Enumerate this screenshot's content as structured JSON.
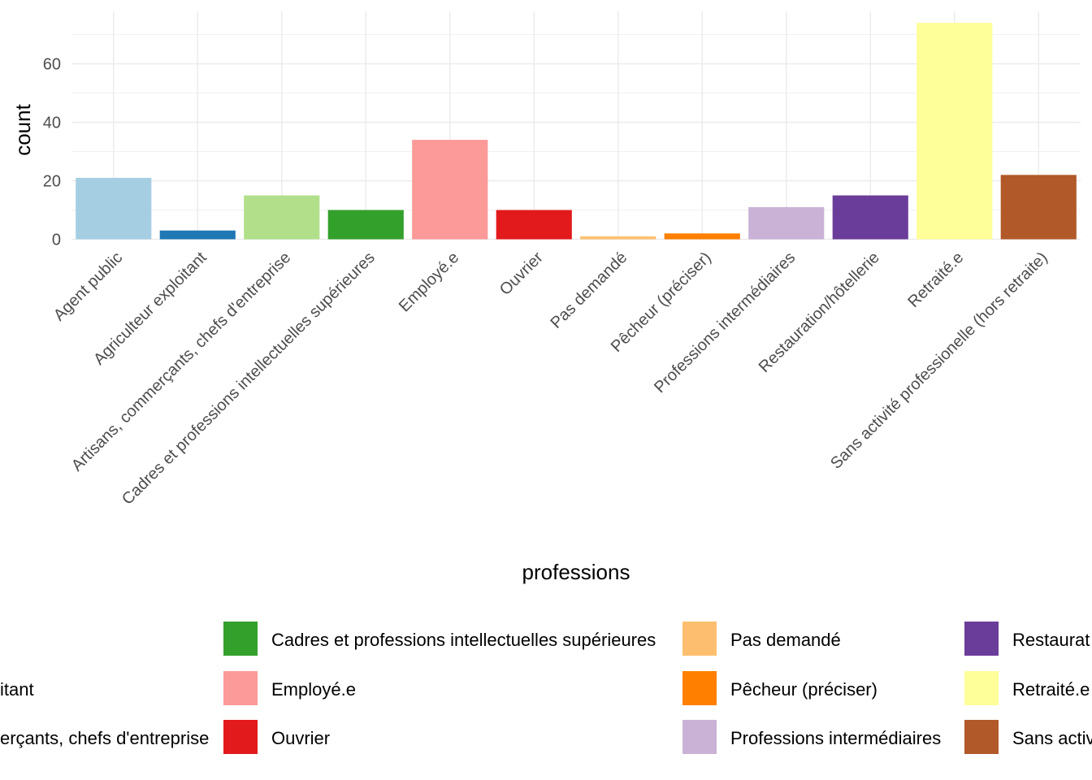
{
  "chart_data": {
    "type": "bar",
    "title": "",
    "xlabel": "professions",
    "ylabel": "count",
    "ylim": [
      0,
      78
    ],
    "yticks": [
      0,
      20,
      40,
      60
    ],
    "grid": true,
    "legend_position": "bottom",
    "categories": [
      "Agent public",
      "Agriculteur exploitant",
      "Artisans, commerçants, chefs d'entreprise",
      "Cadres et professions intellectuelles supérieures",
      "Employé.e",
      "Ouvrier",
      "Pas demandé",
      "Pêcheur (préciser)",
      "Professions intermédiaires",
      "Restauration/hôtellerie",
      "Retraité.e",
      "Sans activité professionelle (hors retraite)"
    ],
    "values": [
      21,
      3,
      15,
      10,
      34,
      10,
      1,
      2,
      11,
      15,
      74,
      22
    ],
    "colors": [
      "#A6CEE3",
      "#1F78B4",
      "#B2DF8A",
      "#33A02C",
      "#FB9A99",
      "#E31A1C",
      "#FDBF6F",
      "#FF7F00",
      "#CAB2D6",
      "#6A3D9A",
      "#FFFF99",
      "#B15928"
    ],
    "legend_entries": [
      {
        "label": "itant",
        "color": "#1F78B4"
      },
      {
        "label": "erçants, chefs d'entreprise",
        "color": "#B2DF8A"
      },
      {
        "label": "Cadres et professions intellectuelles supérieures",
        "color": "#33A02C"
      },
      {
        "label": "Employé.e",
        "color": "#FB9A99"
      },
      {
        "label": "Ouvrier",
        "color": "#E31A1C"
      },
      {
        "label": "Pas demandé",
        "color": "#FDBF6F"
      },
      {
        "label": "Pêcheur (préciser)",
        "color": "#FF7F00"
      },
      {
        "label": "Professions intermédiaires",
        "color": "#CAB2D6"
      },
      {
        "label": "Restaurat",
        "color": "#6A3D9A"
      },
      {
        "label": "Retraité.e",
        "color": "#FFFF99"
      },
      {
        "label": "Sans activ",
        "color": "#B15928"
      }
    ]
  }
}
